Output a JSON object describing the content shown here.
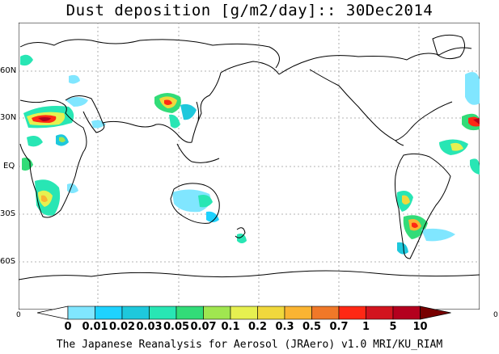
{
  "title": "Dust deposition [g/m2/day]:: 30Dec2014",
  "credit": "The Japanese Reanalysis for Aerosol (JRAero) v1.0 MRI/KU_RIAM",
  "lat_labels": [
    "60N",
    "30N",
    "EQ",
    "30S",
    "60S"
  ],
  "edge_left": "0",
  "edge_right": "0",
  "colorbar": {
    "colors": [
      "#ffffff",
      "#80e6ff",
      "#1ed2ff",
      "#1ec8dc",
      "#28e6b4",
      "#32dc78",
      "#a0e650",
      "#e6f050",
      "#f0d83c",
      "#fab432",
      "#f07828",
      "#ff2814",
      "#d2141e",
      "#b4001e",
      "#780000"
    ],
    "labels": [
      "0",
      "0.01",
      "0.02",
      "0.03",
      "0.05",
      "0.07",
      "0.1",
      "0.2",
      "0.3",
      "0.5",
      "0.7",
      "1",
      "5",
      "10"
    ]
  }
}
